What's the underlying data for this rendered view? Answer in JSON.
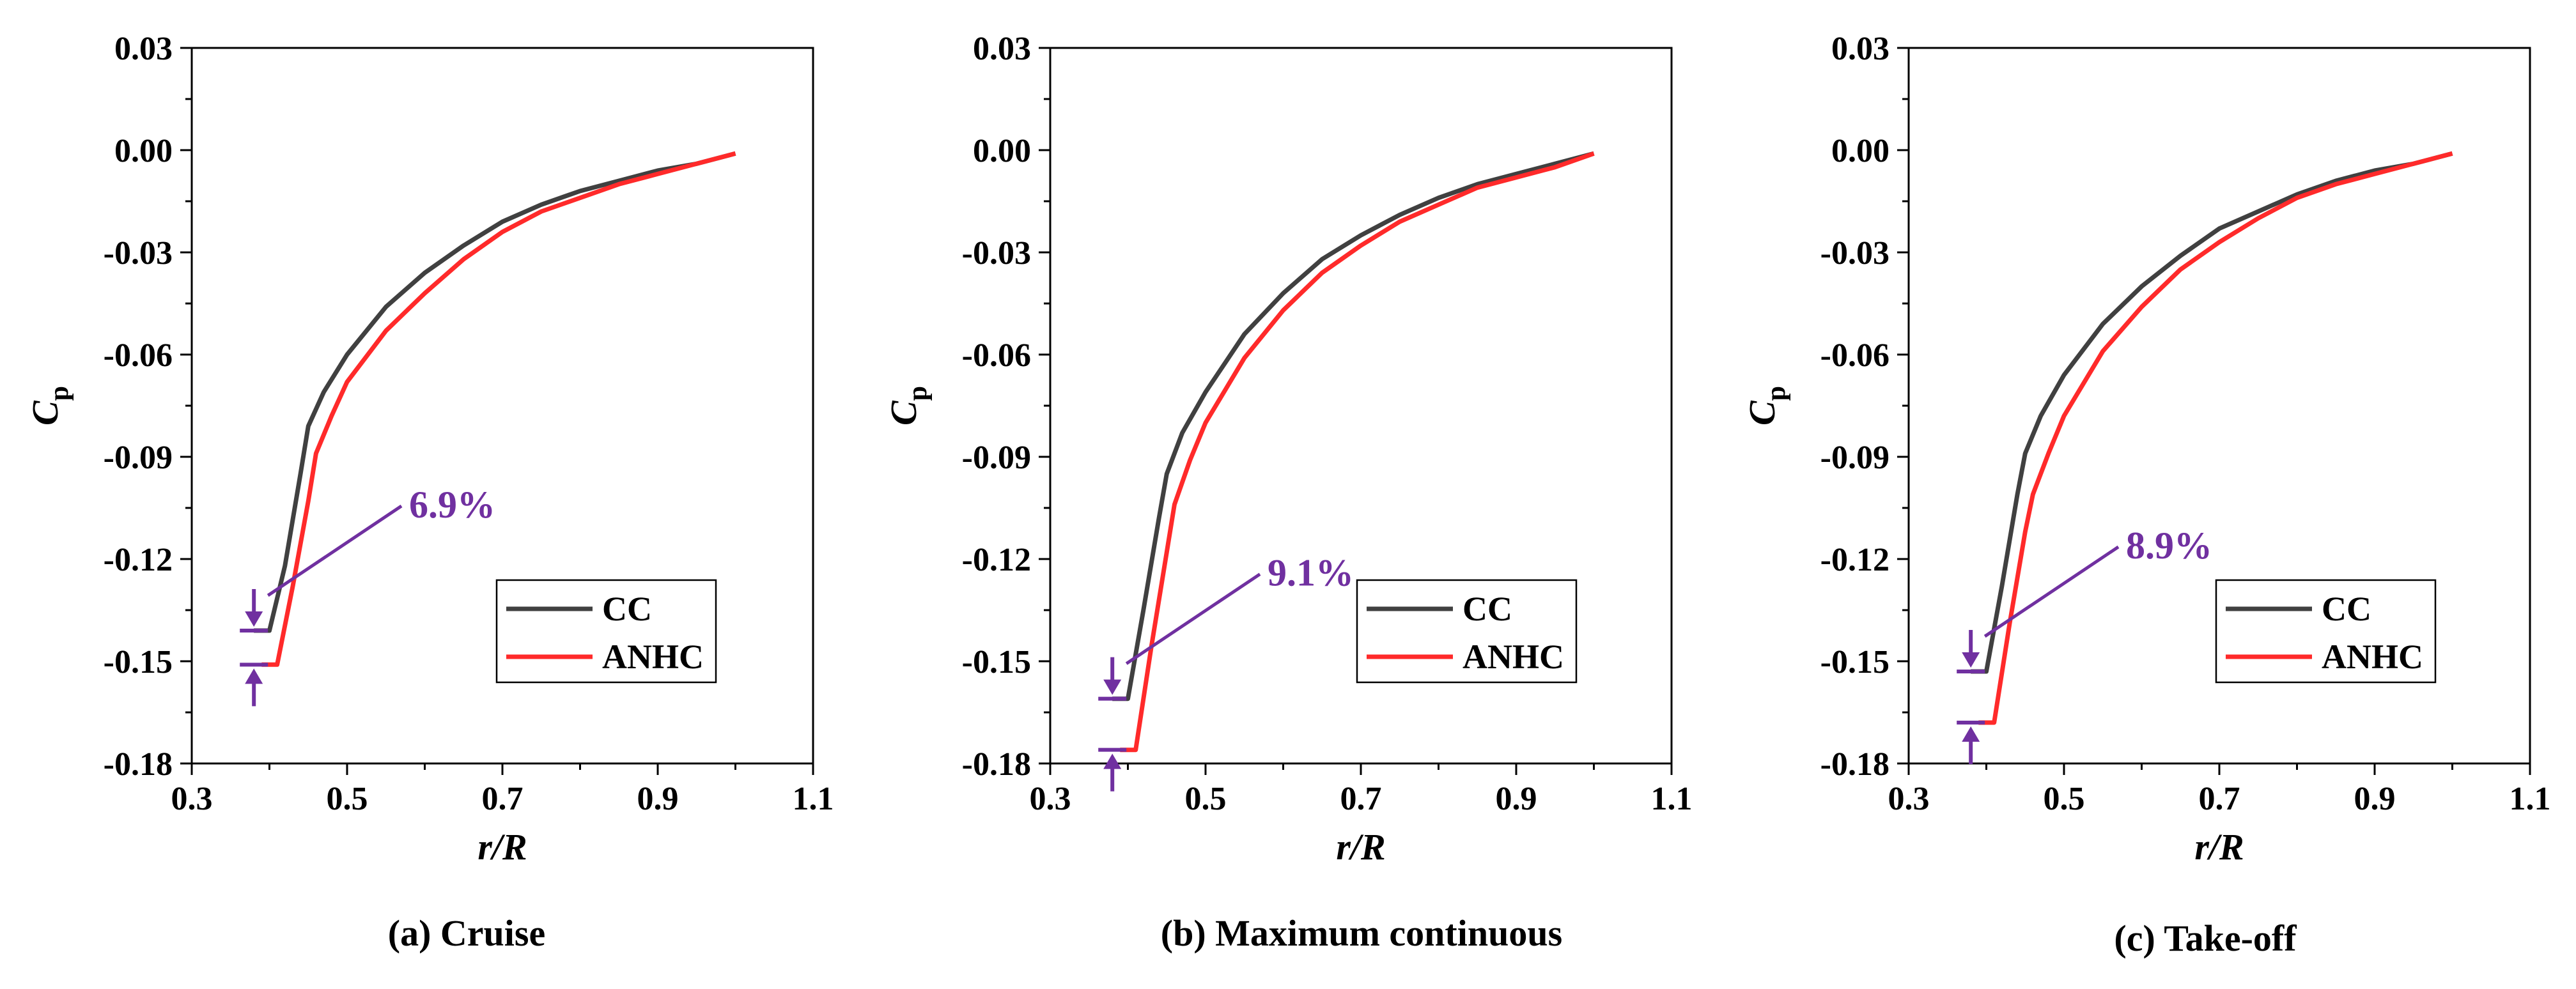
{
  "colors": {
    "series_cc": "#404040",
    "series_anhc": "#ff2a2a",
    "annotation": "#7030a0"
  },
  "chart_data": [
    {
      "type": "line",
      "caption": "(a) Cruise",
      "xlabel": "r/R",
      "ylabel": {
        "main": "C",
        "sub": "p"
      },
      "xlim": [
        0.3,
        1.1
      ],
      "ylim": [
        -0.18,
        0.03
      ],
      "xticks": [
        0.3,
        0.5,
        0.7,
        0.9,
        1.1
      ],
      "yticks": [
        0.03,
        0.0,
        -0.03,
        -0.06,
        -0.09,
        -0.12,
        -0.15,
        -0.18
      ],
      "xtick_labels": [
        "0.3",
        "0.5",
        "0.7",
        "0.9",
        "1.1"
      ],
      "ytick_labels": [
        "0.03",
        "0.00",
        "-0.03",
        "-0.06",
        "-0.09",
        "-0.12",
        "-0.15",
        "-0.18"
      ],
      "legend": [
        "CC",
        "ANHC"
      ],
      "legend_position": "lower-right",
      "annotation": "6.9%",
      "series": [
        {
          "name": "CC",
          "x": [
            0.38,
            0.4,
            0.42,
            0.44,
            0.45,
            0.47,
            0.5,
            0.55,
            0.6,
            0.65,
            0.7,
            0.75,
            0.8,
            0.85,
            0.9,
            0.95,
            1.0
          ],
          "y": [
            -0.141,
            -0.141,
            -0.122,
            -0.095,
            -0.081,
            -0.071,
            -0.06,
            -0.046,
            -0.036,
            -0.028,
            -0.021,
            -0.016,
            -0.012,
            -0.009,
            -0.006,
            -0.004,
            -0.001
          ]
        },
        {
          "name": "ANHC",
          "x": [
            0.39,
            0.41,
            0.43,
            0.45,
            0.46,
            0.48,
            0.5,
            0.55,
            0.6,
            0.65,
            0.7,
            0.75,
            0.8,
            0.85,
            0.9,
            0.95,
            1.0
          ],
          "y": [
            -0.151,
            -0.151,
            -0.128,
            -0.103,
            -0.089,
            -0.078,
            -0.068,
            -0.053,
            -0.042,
            -0.032,
            -0.024,
            -0.018,
            -0.014,
            -0.01,
            -0.007,
            -0.004,
            -0.001
          ]
        }
      ]
    },
    {
      "type": "line",
      "caption": "(b) Maximum continuous",
      "xlabel": "r/R",
      "ylabel": {
        "main": "C",
        "sub": "p"
      },
      "xlim": [
        0.3,
        1.1
      ],
      "ylim": [
        -0.18,
        0.03
      ],
      "xticks": [
        0.3,
        0.5,
        0.7,
        0.9,
        1.1
      ],
      "yticks": [
        0.03,
        0.0,
        -0.03,
        -0.06,
        -0.09,
        -0.12,
        -0.15,
        -0.18
      ],
      "xtick_labels": [
        "0.3",
        "0.5",
        "0.7",
        "0.9",
        "1.1"
      ],
      "ytick_labels": [
        "0.03",
        "0.00",
        "-0.03",
        "-0.06",
        "-0.09",
        "-0.12",
        "-0.15",
        "-0.18"
      ],
      "legend": [
        "CC",
        "ANHC"
      ],
      "legend_position": "lower-right",
      "annotation": "9.1%",
      "series": [
        {
          "name": "CC",
          "x": [
            0.38,
            0.4,
            0.42,
            0.44,
            0.45,
            0.47,
            0.5,
            0.55,
            0.6,
            0.65,
            0.7,
            0.75,
            0.8,
            0.85,
            0.9,
            0.95,
            1.0
          ],
          "y": [
            -0.161,
            -0.161,
            -0.135,
            -0.108,
            -0.095,
            -0.083,
            -0.071,
            -0.054,
            -0.042,
            -0.032,
            -0.025,
            -0.019,
            -0.014,
            -0.01,
            -0.007,
            -0.004,
            -0.001
          ]
        },
        {
          "name": "ANHC",
          "x": [
            0.39,
            0.41,
            0.43,
            0.45,
            0.46,
            0.48,
            0.5,
            0.55,
            0.6,
            0.65,
            0.7,
            0.75,
            0.8,
            0.85,
            0.9,
            0.95,
            1.0
          ],
          "y": [
            -0.176,
            -0.176,
            -0.146,
            -0.118,
            -0.104,
            -0.091,
            -0.08,
            -0.061,
            -0.047,
            -0.036,
            -0.028,
            -0.021,
            -0.016,
            -0.011,
            -0.008,
            -0.005,
            -0.001
          ]
        }
      ]
    },
    {
      "type": "line",
      "caption": "(c) Take-off",
      "xlabel": "r/R",
      "ylabel": {
        "main": "C",
        "sub": "p"
      },
      "xlim": [
        0.3,
        1.1
      ],
      "ylim": [
        -0.18,
        0.03
      ],
      "xticks": [
        0.3,
        0.5,
        0.7,
        0.9,
        1.1
      ],
      "yticks": [
        0.03,
        0.0,
        -0.03,
        -0.06,
        -0.09,
        -0.12,
        -0.15,
        -0.18
      ],
      "xtick_labels": [
        "0.3",
        "0.5",
        "0.7",
        "0.9",
        "1.1"
      ],
      "ytick_labels": [
        "0.03",
        "0.00",
        "-0.03",
        "-0.06",
        "-0.09",
        "-0.12",
        "-0.15",
        "-0.18"
      ],
      "legend": [
        "CC",
        "ANHC"
      ],
      "legend_position": "lower-right",
      "annotation": "8.9%",
      "series": [
        {
          "name": "CC",
          "x": [
            0.38,
            0.4,
            0.42,
            0.44,
            0.45,
            0.47,
            0.5,
            0.55,
            0.6,
            0.65,
            0.7,
            0.75,
            0.8,
            0.85,
            0.9,
            0.95,
            1.0
          ],
          "y": [
            -0.153,
            -0.153,
            -0.128,
            -0.101,
            -0.089,
            -0.078,
            -0.066,
            -0.051,
            -0.04,
            -0.031,
            -0.023,
            -0.018,
            -0.013,
            -0.009,
            -0.006,
            -0.004,
            -0.001
          ]
        },
        {
          "name": "ANHC",
          "x": [
            0.39,
            0.41,
            0.43,
            0.45,
            0.46,
            0.48,
            0.5,
            0.55,
            0.6,
            0.65,
            0.7,
            0.75,
            0.8,
            0.85,
            0.9,
            0.95,
            1.0
          ],
          "y": [
            -0.168,
            -0.168,
            -0.139,
            -0.112,
            -0.101,
            -0.089,
            -0.078,
            -0.059,
            -0.046,
            -0.035,
            -0.027,
            -0.02,
            -0.014,
            -0.01,
            -0.007,
            -0.004,
            -0.001
          ]
        }
      ]
    }
  ]
}
